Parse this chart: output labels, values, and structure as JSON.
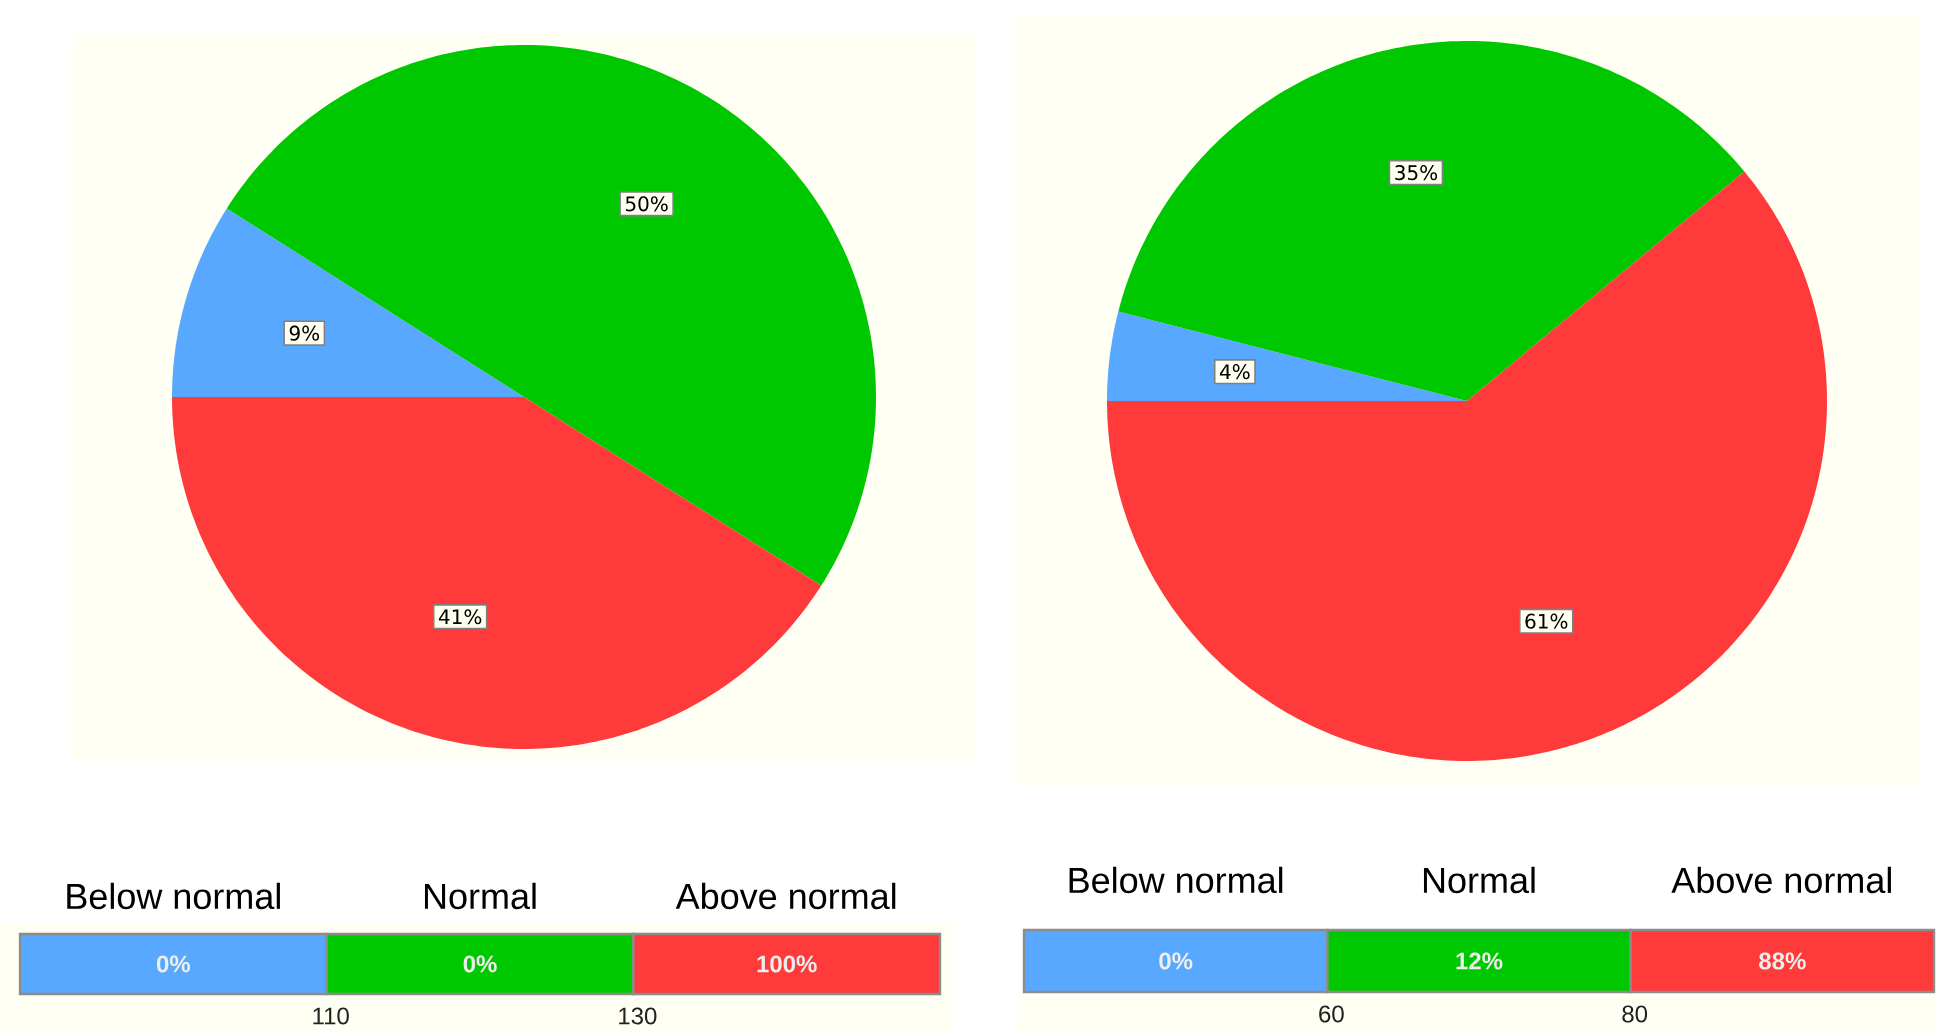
{
  "chart_data": [
    {
      "type": "pie",
      "categories": [
        null,
        null,
        null
      ],
      "values": [
        9,
        50,
        41
      ],
      "colors": [
        "#58a8ff",
        "#00c800",
        "#ff3a3a"
      ],
      "value_labels": [
        "9%",
        "50%",
        "41%"
      ]
    },
    {
      "type": "pie",
      "categories": [
        null,
        null,
        null
      ],
      "values": [
        4,
        35,
        61
      ],
      "colors": [
        "#58a8ff",
        "#00c800",
        "#ff3a3a"
      ],
      "value_labels": [
        "4%",
        "35%",
        "61%"
      ]
    },
    {
      "type": "other",
      "categories": [
        "Below normal",
        "Normal",
        "Above normal"
      ],
      "values": [
        0,
        0,
        100
      ],
      "colors": [
        "#58a8ff",
        "#00c800",
        "#ff3a3a"
      ],
      "value_labels": [
        "0%",
        "0%",
        "100%"
      ],
      "annotations": [
        "110",
        "130"
      ]
    },
    {
      "type": "other",
      "categories": [
        "Below normal",
        "Normal",
        "Above normal"
      ],
      "values": [
        0,
        12,
        88
      ],
      "colors": [
        "#58a8ff",
        "#00c800",
        "#ff3a3a"
      ],
      "value_labels": [
        "0%",
        "12%",
        "88%"
      ],
      "annotations": [
        "60",
        "80"
      ]
    }
  ]
}
